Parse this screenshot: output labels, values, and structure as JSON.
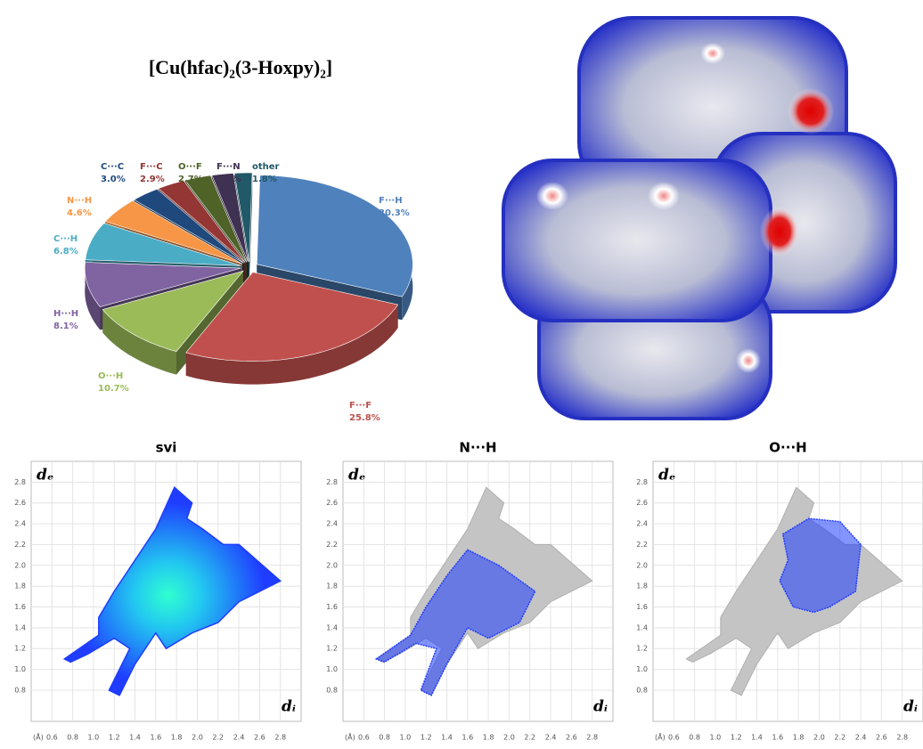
{
  "chart_data": [
    {
      "type": "pie",
      "title": "[Cu(hfac)₂(3-Hoxpy)₂]",
      "categories": [
        "F···H",
        "F···F",
        "O···H",
        "H···H",
        "C···H",
        "N···H",
        "C···C",
        "F···C",
        "O···F",
        "F···N",
        "other"
      ],
      "values": [
        30.3,
        25.8,
        10.7,
        8.1,
        6.8,
        4.6,
        3.0,
        2.9,
        2.7,
        2.2,
        1.8
      ],
      "value_labels": [
        "30.3%",
        "25.8%",
        "10.7%",
        "8.1%",
        "6.8%",
        "4.6%",
        "3.0%",
        "2.9%",
        "2.7%",
        "2.2%",
        "1.8%"
      ],
      "colors": [
        "#4f81bd",
        "#c0504d",
        "#9bbb59",
        "#8064a2",
        "#4bacc6",
        "#f79646",
        "#1f497d",
        "#943634",
        "#4f6228",
        "#3f3151",
        "#215968"
      ]
    },
    {
      "type": "fingerprint",
      "title": "svi",
      "xlabel": "dᵢ",
      "ylabel": "dₑ",
      "unit_label": "(Å)",
      "xlim": [
        0.4,
        3.0
      ],
      "ylim": [
        0.5,
        3.0
      ],
      "xticks": [
        0.6,
        0.8,
        {
          "value": 1.0,
          "label": "1.0"
        },
        1.2,
        1.4,
        1.6,
        1.8,
        {
          "value": 2.0,
          "label": "2.0"
        },
        2.2,
        2.4,
        2.6,
        2.8
      ],
      "yticks": [
        0.8,
        {
          "value": 1.0,
          "label": "1.0"
        },
        1.2,
        1.4,
        1.6,
        1.8,
        {
          "value": 2.0,
          "label": "2.0"
        },
        2.2,
        2.4,
        2.6,
        2.8
      ],
      "grid": true,
      "color": "#1f3cff"
    },
    {
      "type": "fingerprint",
      "title": "N···H",
      "xlabel": "dᵢ",
      "ylabel": "dₑ",
      "unit_label": "(Å)",
      "xlim": [
        0.4,
        3.0
      ],
      "ylim": [
        0.5,
        3.0
      ],
      "xticks": [
        0.6,
        0.8,
        {
          "value": 1.0,
          "label": "1.0"
        },
        1.2,
        1.4,
        1.6,
        1.8,
        {
          "value": 2.0,
          "label": "2.0"
        },
        2.2,
        2.4,
        2.6,
        2.8
      ],
      "yticks": [
        0.8,
        {
          "value": 1.0,
          "label": "1.0"
        },
        1.2,
        1.4,
        1.6,
        1.8,
        {
          "value": 2.0,
          "label": "2.0"
        },
        2.2,
        2.4,
        2.6,
        2.8
      ],
      "grid": true,
      "color": "#1f3cff"
    },
    {
      "type": "fingerprint",
      "title": "O···H",
      "xlabel": "dᵢ",
      "ylabel": "dₑ",
      "unit_label": "(Å)",
      "xlim": [
        0.4,
        3.0
      ],
      "ylim": [
        0.5,
        3.0
      ],
      "xticks": [
        0.6,
        0.8,
        {
          "value": 1.0,
          "label": "1.0"
        },
        1.2,
        1.4,
        1.6,
        1.8,
        {
          "value": 2.0,
          "label": "2.0"
        },
        2.2,
        2.4,
        2.6,
        2.8
      ],
      "yticks": [
        0.8,
        {
          "value": 1.0,
          "label": "1.0"
        },
        1.2,
        1.4,
        1.6,
        1.8,
        {
          "value": 2.0,
          "label": "2.0"
        },
        2.2,
        2.4,
        2.6,
        2.8
      ],
      "grid": true,
      "color": "#1f3cff"
    }
  ]
}
